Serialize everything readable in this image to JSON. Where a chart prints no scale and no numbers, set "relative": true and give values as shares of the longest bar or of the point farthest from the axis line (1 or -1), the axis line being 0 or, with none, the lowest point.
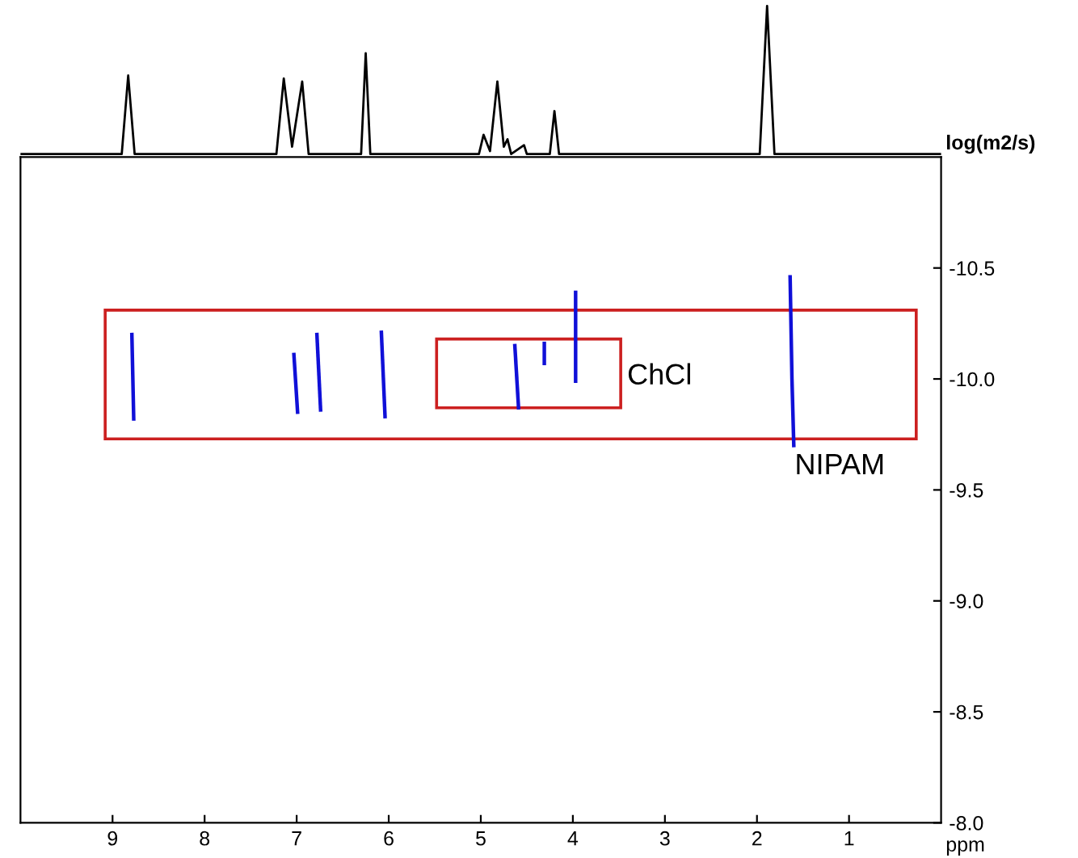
{
  "chart_data": [
    {
      "type": "line",
      "relative": true,
      "xlim": [
        10,
        0
      ],
      "tick_labels": false,
      "color": "#000000",
      "x": [
        10,
        8.9,
        8.83,
        8.76,
        7.22,
        7.14,
        7.05,
        6.94,
        6.87,
        6.3,
        6.25,
        6.2,
        5.02,
        4.97,
        4.9,
        4.82,
        4.75,
        4.71,
        4.67,
        4.53,
        4.5,
        4.25,
        4.2,
        4.15,
        1.97,
        1.89,
        1.81,
        0
      ],
      "values": [
        0,
        0,
        0.53,
        0,
        0,
        0.51,
        0.05,
        0.49,
        0,
        0,
        0.68,
        0,
        0,
        0.13,
        0.02,
        0.49,
        0.05,
        0.1,
        0,
        0.06,
        0,
        0,
        0.29,
        0,
        0,
        1,
        0,
        0
      ]
    },
    {
      "type": "line",
      "xlabel": "ppm",
      "ylabel": "log(m2/s)",
      "xlim": [
        10,
        0
      ],
      "ylim": [
        -8.0,
        -11.0
      ],
      "xticks": [
        9,
        8,
        7,
        6,
        5,
        4,
        3,
        2,
        1
      ],
      "yticks": [
        {
          "value": -10.5,
          "label": "-10.5"
        },
        {
          "value": -10.0,
          "label": "-10.0"
        },
        {
          "value": -9.5,
          "label": "-9.5"
        },
        {
          "value": -9.0,
          "label": "-9.0"
        },
        {
          "value": -8.5,
          "label": "-8.5"
        },
        {
          "value": -8.0,
          "label": "-8.0"
        }
      ],
      "series": [
        {
          "color": "#1010d8",
          "x": [
            8.79,
            8.77
          ],
          "values": [
            -10.2,
            -9.82
          ]
        },
        {
          "color": "#1010d8",
          "x": [
            7.03,
            6.99
          ],
          "values": [
            -10.11,
            -9.85
          ]
        },
        {
          "color": "#1010d8",
          "x": [
            6.78,
            6.74
          ],
          "values": [
            -10.2,
            -9.86
          ]
        },
        {
          "color": "#1010d8",
          "x": [
            6.08,
            6.04
          ],
          "values": [
            -10.21,
            -9.83
          ]
        },
        {
          "color": "#1010d8",
          "x": [
            4.63,
            4.59
          ],
          "values": [
            -10.15,
            -9.87
          ]
        },
        {
          "color": "#1010d8",
          "x": [
            4.31,
            4.31
          ],
          "values": [
            -10.16,
            -10.07
          ]
        },
        {
          "color": "#1010d8",
          "x": [
            3.97,
            3.97
          ],
          "values": [
            -10.39,
            -9.99
          ]
        },
        {
          "color": "#1010d8",
          "x": [
            1.64,
            1.62,
            1.6
          ],
          "values": [
            -10.46,
            -10.0,
            -9.7
          ]
        }
      ],
      "annotations": [
        "ChCl",
        "NIPAM"
      ]
    }
  ]
}
